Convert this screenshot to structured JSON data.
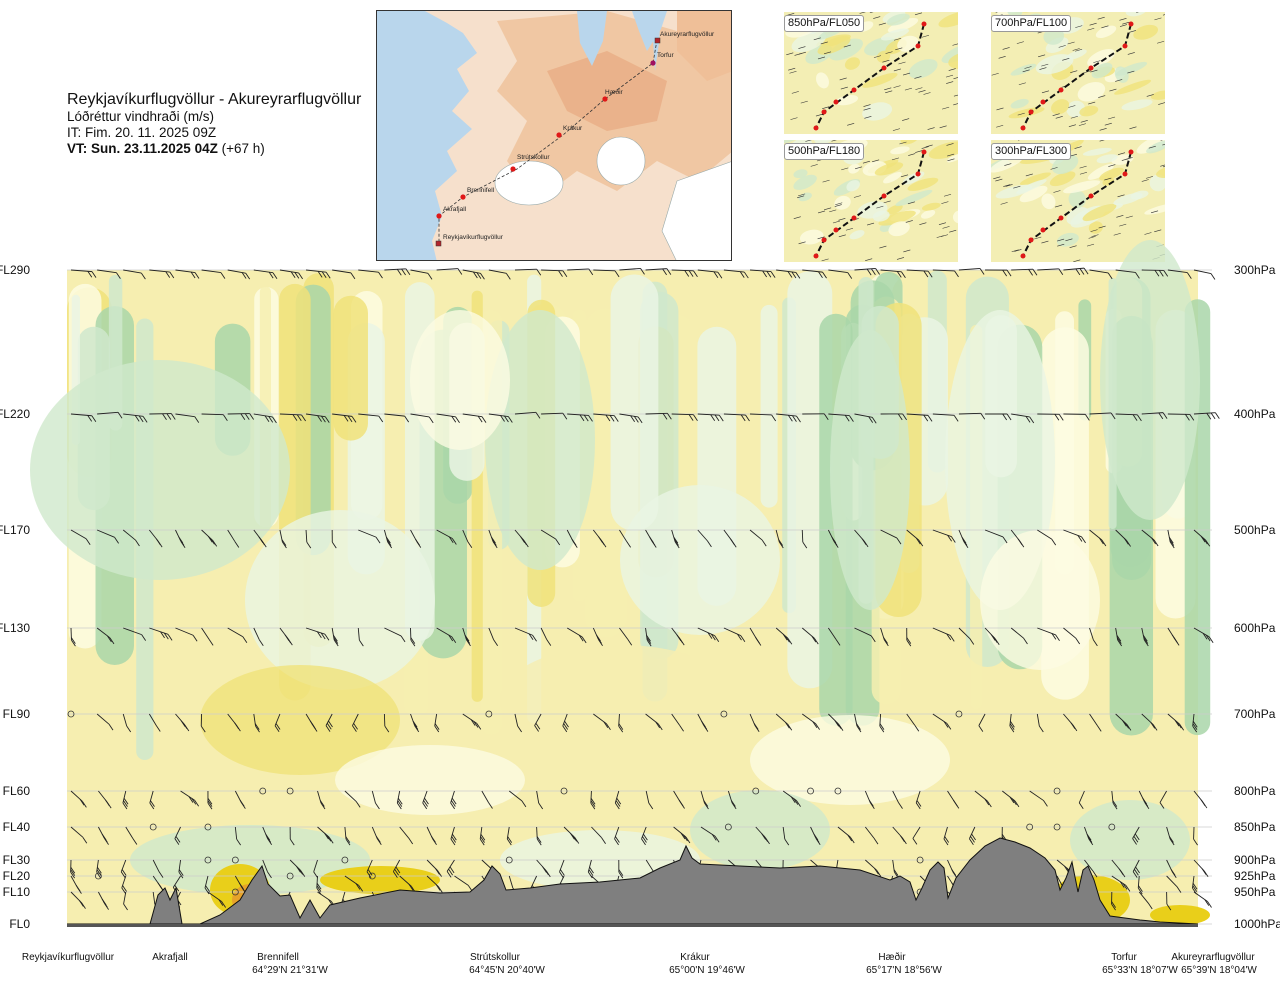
{
  "header": {
    "route": "Reykjavíkurflugvöllur - Akureyrarflugvöllur",
    "variable": "Lóðréttur vindhraði (m/s)",
    "issue_time": "IT: Fim. 20. 11. 2025 09Z",
    "valid_prefix": "VT: Sun. 23.11.2025 04Z",
    "valid_suffix": "(+67 h)"
  },
  "map": {
    "labels": [
      "Akureyrarflugvöllur",
      "Torfur",
      "Hæðir",
      "Krákur",
      "Strútskollur",
      "Brennifell",
      "Akrafjall",
      "Reykjavíkurflugvöllur"
    ]
  },
  "mini_maps": [
    {
      "label": "850hPa/FL050"
    },
    {
      "label": "700hPa/FL100"
    },
    {
      "label": "500hPa/FL180"
    },
    {
      "label": "300hPa/FL300"
    }
  ],
  "chart_data": {
    "type": "heatmap",
    "title": "",
    "xlabel": "",
    "ylabel": "",
    "y_left_labels": [
      "FL290",
      "FL220",
      "FL170",
      "FL130",
      "FL90",
      "FL60",
      "FL40",
      "FL30",
      "FL20",
      "FL10",
      "FL0"
    ],
    "y_right_labels": [
      "300hPa",
      "400hPa",
      "500hPa",
      "600hPa",
      "700hPa",
      "800hPa",
      "850hPa",
      "900hPa",
      "925hPa",
      "950hPa",
      "1000hPa"
    ],
    "pressure_levels_hpa": [
      300,
      400,
      500,
      600,
      700,
      800,
      850,
      900,
      925,
      950,
      1000
    ],
    "x_locations": [
      {
        "name": "Reykjavíkurflugvöllur",
        "coord": ""
      },
      {
        "name": "Akrafjall",
        "coord": ""
      },
      {
        "name": "Brennifell",
        "coord": "64°29'N 21°31'W"
      },
      {
        "name": "Strútskollur",
        "coord": "64°45'N 20°40'W"
      },
      {
        "name": "Krákur",
        "coord": "65°00'N 19°46'W"
      },
      {
        "name": "Hæðir",
        "coord": "65°17'N 18°56'W"
      },
      {
        "name": "Torfur",
        "coord": "65°33'N 18°07'W"
      },
      {
        "name": "Akureyrarflugvöllur",
        "coord": "65°39'N 18°04'W"
      }
    ],
    "colors": {
      "strong_up": "#a9d6a9",
      "up": "#cfe8cc",
      "weak_up": "#eaf5e4",
      "neutral": "#fdfbe2",
      "weak_down": "#f6eeb0",
      "down": "#f0e27a",
      "strong_down": "#e9cf1a",
      "very_strong_down": "#e6a32a",
      "terrain": "#7f7f7f"
    },
    "legend": "none",
    "grid": true
  }
}
